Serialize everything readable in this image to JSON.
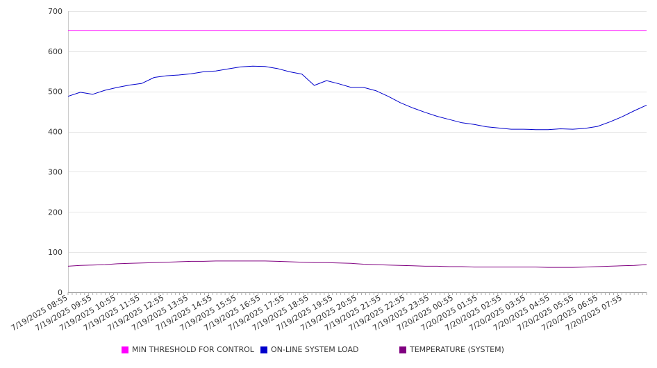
{
  "chart_data": {
    "type": "line",
    "title": "",
    "xlabel": "",
    "ylabel": "",
    "ylim": [
      0,
      700
    ],
    "yticks": [
      0,
      100,
      200,
      300,
      400,
      500,
      600,
      700
    ],
    "grid": true,
    "legend_position": "bottom",
    "x_tick_labels": [
      "7/19/2025 08:55",
      "7/19/2025 09:55",
      "7/19/2025 10:55",
      "7/19/2025 11:55",
      "7/19/2025 12:55",
      "7/19/2025 13:55",
      "7/19/2025 14:55",
      "7/19/2025 15:55",
      "7/19/2025 16:55",
      "7/19/2025 17:55",
      "7/19/2025 18:55",
      "7/19/2025 19:55",
      "7/19/2025 20:55",
      "7/19/2025 21:55",
      "7/19/2025 22:55",
      "7/19/2025 23:55",
      "7/20/2025 00:55",
      "7/20/2025 01:55",
      "7/20/2025 02:55",
      "7/20/2025 03:55",
      "7/20/2025 04:55",
      "7/20/2025 05:55",
      "7/20/2025 06:55",
      "7/20/2025 07:55"
    ],
    "x": [
      "7/19/2025 08:55",
      "7/19/2025 09:25",
      "7/19/2025 09:55",
      "7/19/2025 10:25",
      "7/19/2025 10:55",
      "7/19/2025 11:25",
      "7/19/2025 11:55",
      "7/19/2025 12:25",
      "7/19/2025 12:55",
      "7/19/2025 13:25",
      "7/19/2025 13:55",
      "7/19/2025 14:25",
      "7/19/2025 14:55",
      "7/19/2025 15:25",
      "7/19/2025 15:55",
      "7/19/2025 16:25",
      "7/19/2025 16:55",
      "7/19/2025 17:25",
      "7/19/2025 17:55",
      "7/19/2025 18:25",
      "7/19/2025 18:55",
      "7/19/2025 19:25",
      "7/19/2025 19:55",
      "7/19/2025 20:25",
      "7/19/2025 20:55",
      "7/19/2025 21:25",
      "7/19/2025 21:55",
      "7/19/2025 22:25",
      "7/19/2025 22:55",
      "7/19/2025 23:25",
      "7/19/2025 23:55",
      "7/20/2025 00:25",
      "7/20/2025 00:55",
      "7/20/2025 01:25",
      "7/20/2025 01:55",
      "7/20/2025 02:25",
      "7/20/2025 02:55",
      "7/20/2025 03:25",
      "7/20/2025 03:55",
      "7/20/2025 04:25",
      "7/20/2025 04:55",
      "7/20/2025 05:25",
      "7/20/2025 05:55",
      "7/20/2025 06:25",
      "7/20/2025 06:55",
      "7/20/2025 07:25",
      "7/20/2025 07:55",
      "7/20/2025 08:25"
    ],
    "series": [
      {
        "name": "MIN THRESHOLD FOR CONTROL",
        "color": "#ff00ff",
        "values": [
          652,
          652,
          652,
          652,
          652,
          652,
          652,
          652,
          652,
          652,
          652,
          652,
          652,
          652,
          652,
          652,
          652,
          652,
          652,
          652,
          652,
          652,
          652,
          652,
          652,
          652,
          652,
          652,
          652,
          652,
          652,
          652,
          652,
          652,
          652,
          652,
          652,
          652,
          652,
          652,
          652,
          652,
          652,
          652,
          652,
          652,
          652,
          652
        ]
      },
      {
        "name": "ON-LINE SYSTEM LOAD",
        "color": "#0000cc",
        "values": [
          488,
          498,
          493,
          503,
          510,
          516,
          520,
          535,
          539,
          541,
          544,
          549,
          551,
          556,
          561,
          563,
          562,
          557,
          549,
          543,
          515,
          527,
          519,
          510,
          510,
          502,
          488,
          472,
          459,
          448,
          438,
          430,
          422,
          418,
          412,
          409,
          406,
          406,
          405,
          405,
          407,
          406,
          408,
          413,
          424,
          437,
          452,
          466
        ]
      },
      {
        "name": "TEMPERATURE (SYSTEM)",
        "color": "#800080",
        "values": [
          65,
          67,
          68,
          69,
          71,
          72,
          73,
          74,
          75,
          76,
          77,
          77,
          78,
          78,
          78,
          78,
          78,
          77,
          76,
          75,
          74,
          74,
          73,
          72,
          70,
          69,
          68,
          67,
          66,
          65,
          65,
          64,
          64,
          63,
          63,
          63,
          63,
          63,
          63,
          62,
          62,
          62,
          63,
          64,
          65,
          66,
          67,
          69
        ]
      }
    ]
  }
}
